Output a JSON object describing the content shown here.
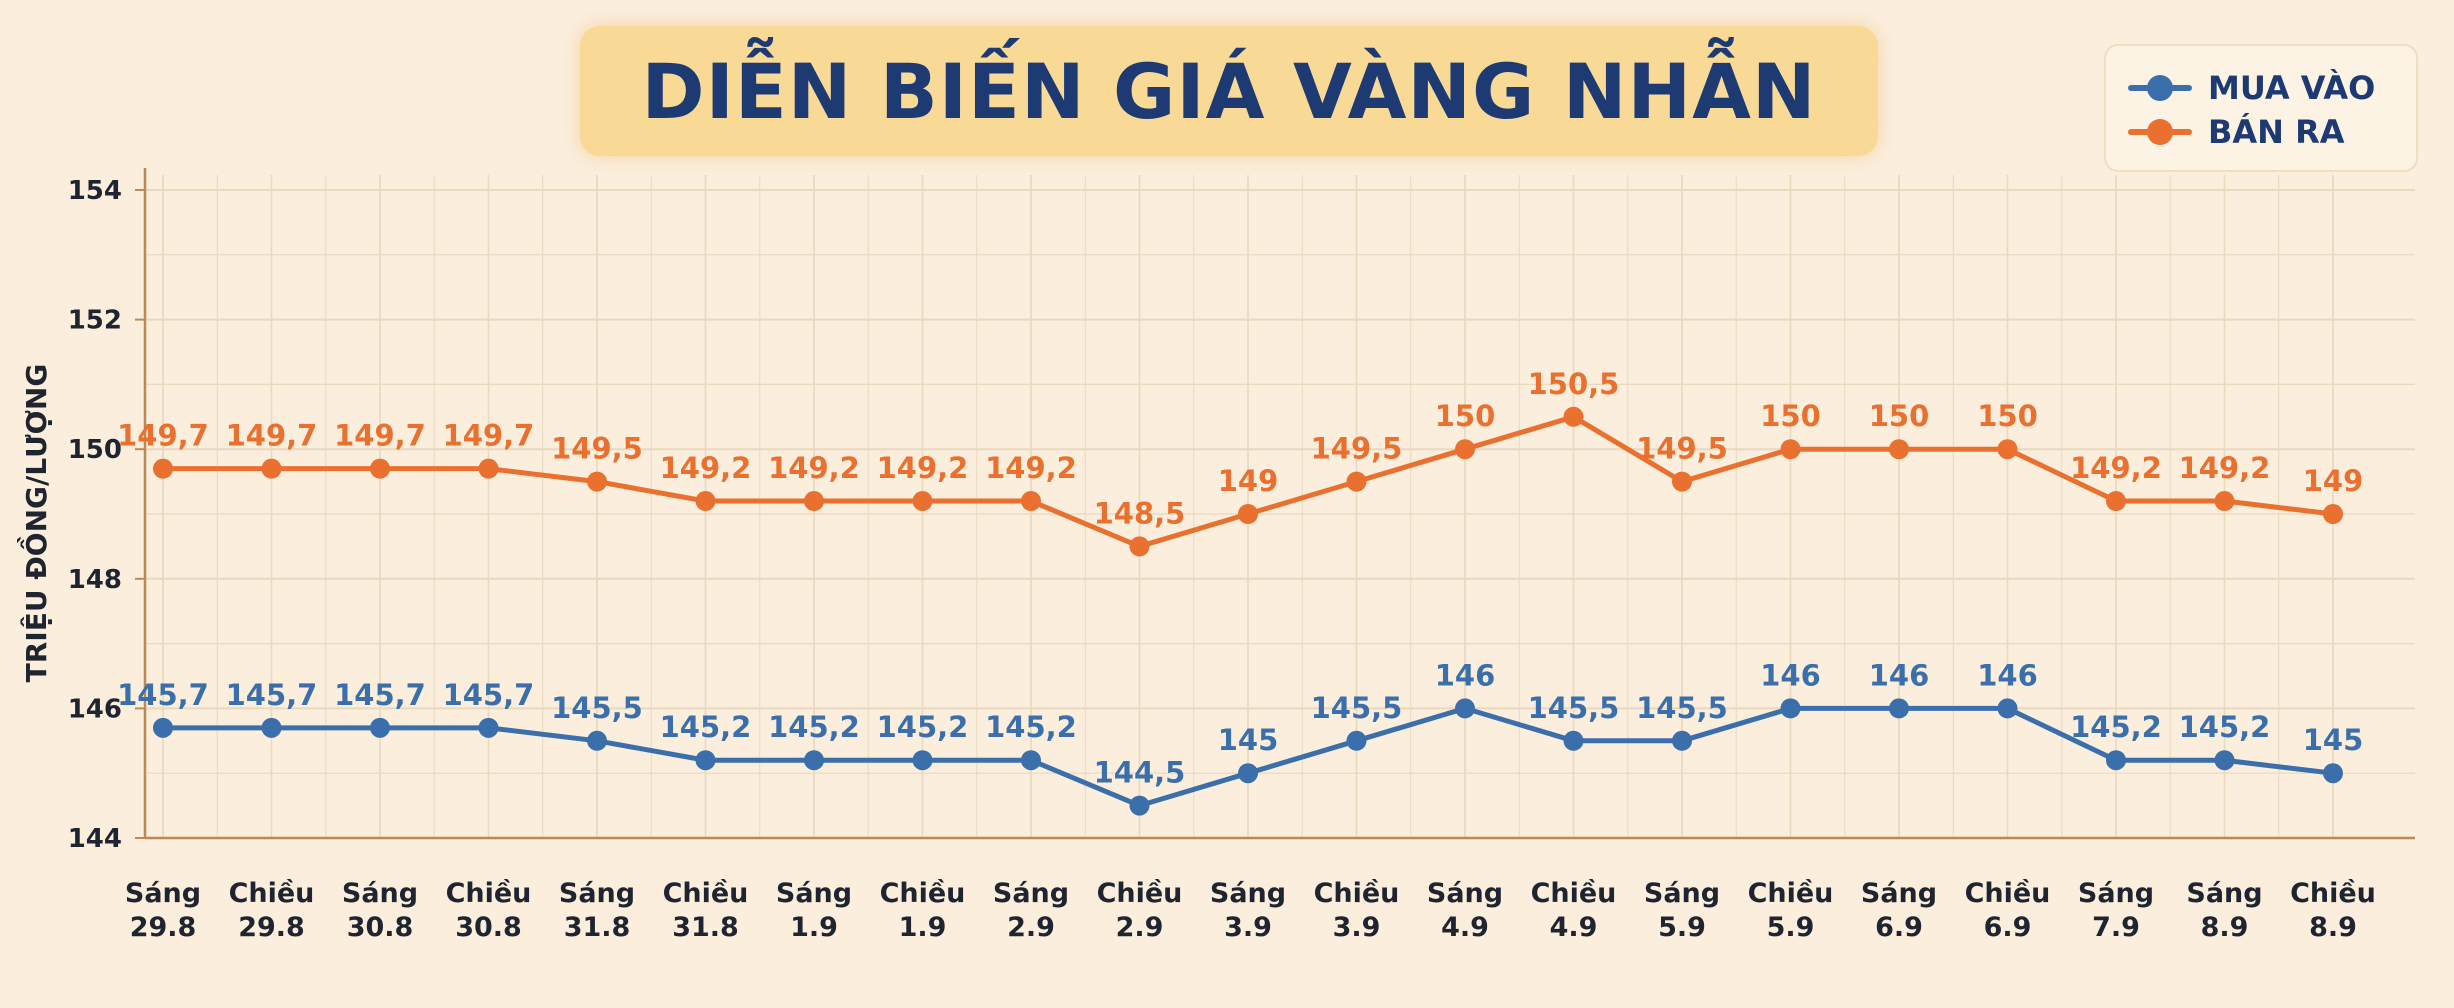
{
  "title": "DIỄN BIẾN GIÁ VÀNG NHẪN",
  "colors": {
    "background": "#fbeedd",
    "title_bg": "#f8d996",
    "title_text": "#1d3a73",
    "buy": "#3b6fac",
    "sell": "#e9702f",
    "grid": "#ead8bf",
    "axis": "#b98a57"
  },
  "legend": {
    "buy_label": "MUA VÀO",
    "sell_label": "BÁN RA"
  },
  "chart_data": {
    "type": "line",
    "title": "DIỄN BIẾN GIÁ VÀNG NHẪN",
    "xlabel": "",
    "ylabel": "TRIỆU ĐỒNG/LƯỢNG",
    "ylim": [
      144,
      154
    ],
    "yticks": [
      "144",
      "146",
      "148",
      "150",
      "152",
      "154"
    ],
    "grid": true,
    "legend_position": "top-right",
    "categories": [
      [
        "Sáng",
        "29.8"
      ],
      [
        "Chiều",
        "29.8"
      ],
      [
        "Sáng",
        "30.8"
      ],
      [
        "Chiều",
        "30.8"
      ],
      [
        "Sáng",
        "31.8"
      ],
      [
        "Chiều",
        "31.8"
      ],
      [
        "Sáng",
        "1.9"
      ],
      [
        "Chiều",
        "1.9"
      ],
      [
        "Sáng",
        "2.9"
      ],
      [
        "Chiều",
        "2.9"
      ],
      [
        "Sáng",
        "3.9"
      ],
      [
        "Chiều",
        "3.9"
      ],
      [
        "Sáng",
        "4.9"
      ],
      [
        "Chiều",
        "4.9"
      ],
      [
        "Sáng",
        "5.9"
      ],
      [
        "Chiều",
        "5.9"
      ],
      [
        "Sáng",
        "6.9"
      ],
      [
        "Chiều",
        "6.9"
      ],
      [
        "Sáng",
        "7.9"
      ],
      [
        "Sáng",
        "8.9"
      ],
      [
        "Chiều",
        "8.9"
      ]
    ],
    "series": [
      {
        "name": "MUA VÀO",
        "color": "#3b6fac",
        "values": [
          145.7,
          145.7,
          145.7,
          145.7,
          145.5,
          145.2,
          145.2,
          145.2,
          145.2,
          144.5,
          145,
          145.5,
          146,
          145.5,
          145.5,
          146,
          146,
          146,
          145.2,
          145.2,
          145
        ],
        "labels": [
          "145,7",
          "145,7",
          "145,7",
          "145,7",
          "145,5",
          "145,2",
          "145,2",
          "145,2",
          "145,2",
          "144,5",
          "145",
          "145,5",
          "146",
          "145,5",
          "145,5",
          "146",
          "146",
          "146",
          "145,2",
          "145,2",
          "145"
        ]
      },
      {
        "name": "BÁN RA",
        "color": "#e9702f",
        "values": [
          149.7,
          149.7,
          149.7,
          149.7,
          149.5,
          149.2,
          149.2,
          149.2,
          149.2,
          148.5,
          149,
          149.5,
          150,
          150.5,
          149.5,
          150,
          150,
          150,
          149.2,
          149.2,
          149
        ],
        "labels": [
          "149,7",
          "149,7",
          "149,7",
          "149,7",
          "149,5",
          "149,2",
          "149,2",
          "149,2",
          "149,2",
          "148,5",
          "149",
          "149,5",
          "150",
          "150,5",
          "149,5",
          "150",
          "150",
          "150",
          "149,2",
          "149,2",
          "149"
        ]
      }
    ]
  }
}
